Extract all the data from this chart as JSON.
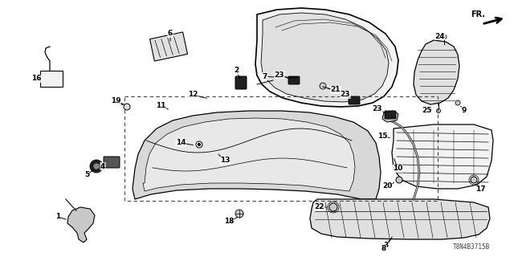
{
  "bg_color": "#ffffff",
  "part_code": "T8N4B3715B",
  "fig_width": 6.4,
  "fig_height": 3.2,
  "dpi": 100
}
